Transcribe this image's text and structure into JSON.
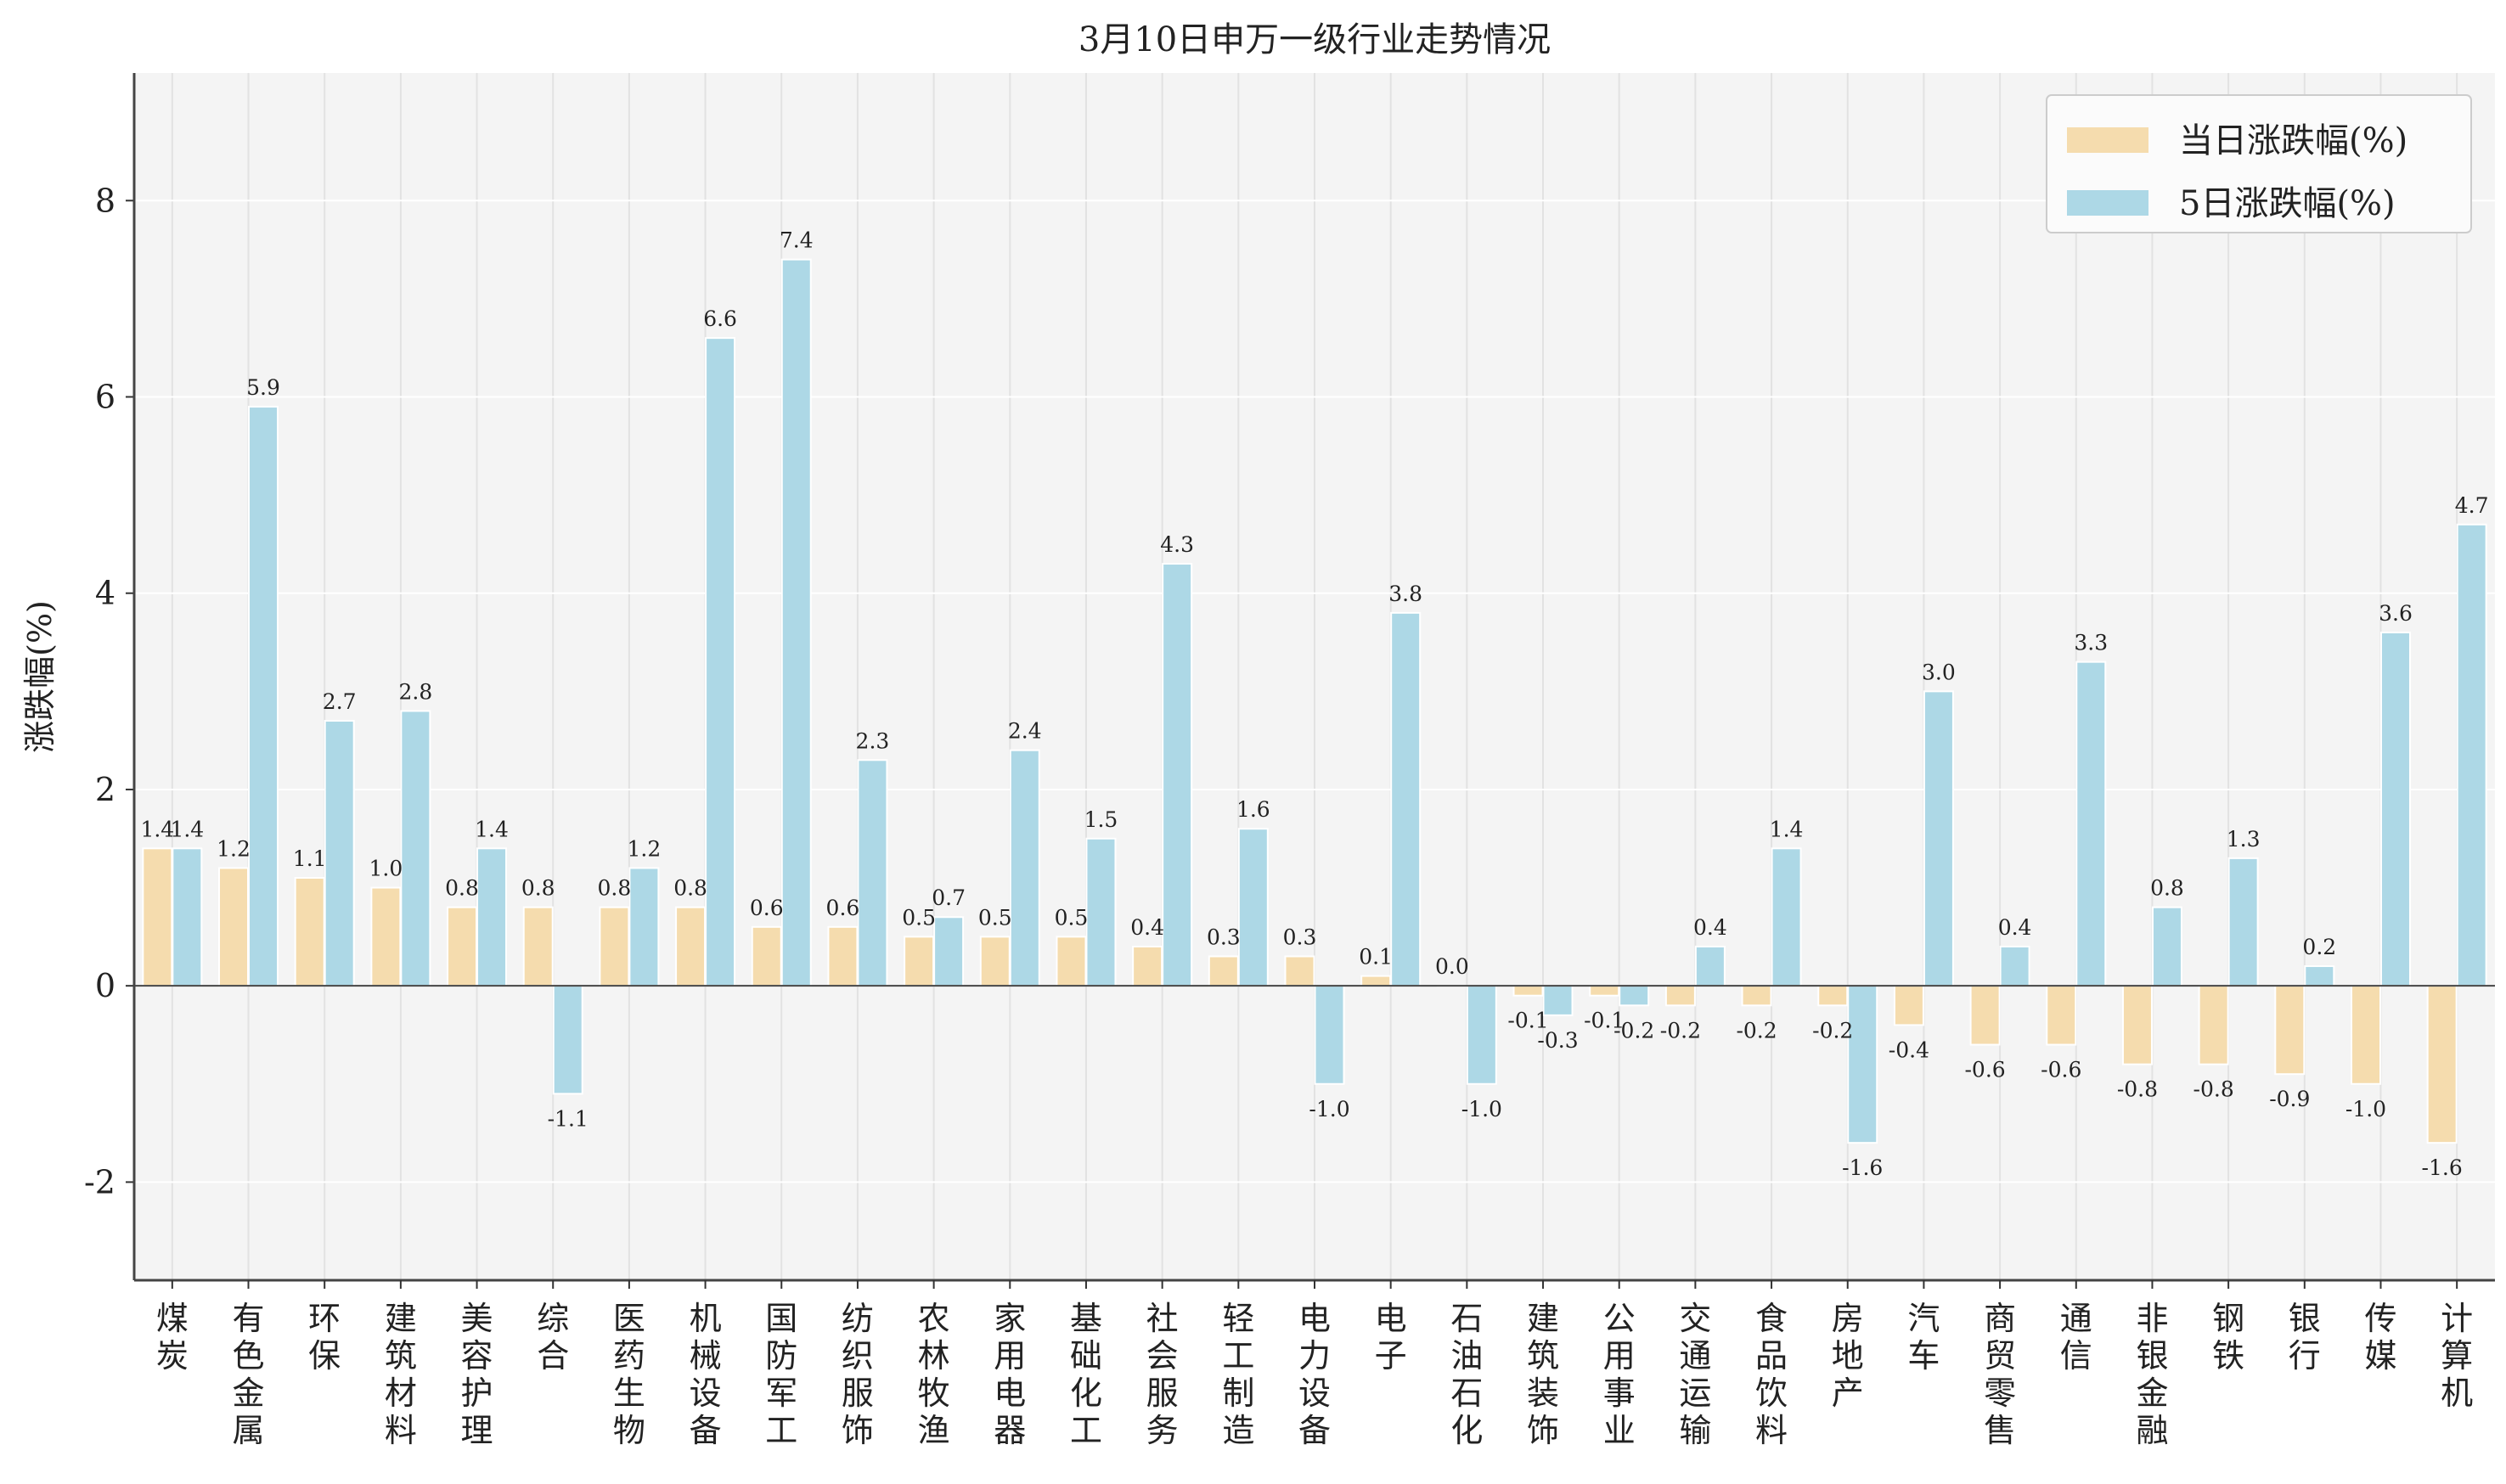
{
  "chart_data": {
    "type": "bar",
    "title": "3月10日申万一级行业走势情况",
    "xlabel": "",
    "ylabel": "涨跌幅(%)",
    "ylim": [
      -3,
      9.3
    ],
    "yticks": [
      -2,
      0,
      2,
      4,
      6,
      8
    ],
    "grid": true,
    "legend_position": "top-right",
    "categories": [
      "煤炭",
      "有色金属",
      "环保",
      "建筑材料",
      "美容护理",
      "综合",
      "医药生物",
      "机械设备",
      "国防军工",
      "纺织服饰",
      "农林牧渔",
      "家用电器",
      "基础化工",
      "社会服务",
      "轻工制造",
      "电力设备",
      "电子",
      "石油石化",
      "建筑装饰",
      "公用事业",
      "交通运输",
      "食品饮料",
      "房地产",
      "汽车",
      "商贸零售",
      "通信",
      "非银金融",
      "钢铁",
      "银行",
      "传媒",
      "计算机"
    ],
    "series": [
      {
        "name": "当日涨跌幅(%)",
        "color": "#f5dcae",
        "values": [
          1.4,
          1.2,
          1.1,
          1.0,
          0.8,
          0.8,
          0.8,
          0.8,
          0.6,
          0.6,
          0.5,
          0.5,
          0.5,
          0.4,
          0.3,
          0.3,
          0.1,
          0.0,
          -0.1,
          -0.1,
          -0.2,
          -0.2,
          -0.2,
          -0.4,
          -0.6,
          -0.6,
          -0.8,
          -0.8,
          -0.9,
          -1.0,
          -1.6
        ]
      },
      {
        "name": "5日涨跌幅(%)",
        "color": "#add8e6",
        "values": [
          1.4,
          5.9,
          2.7,
          2.8,
          1.4,
          -1.1,
          1.2,
          6.6,
          7.4,
          2.3,
          0.7,
          2.4,
          1.5,
          4.3,
          1.6,
          -1.0,
          3.8,
          -1.0,
          -0.3,
          -0.2,
          0.4,
          1.4,
          -1.6,
          3.0,
          0.4,
          3.3,
          0.8,
          1.3,
          0.2,
          3.6,
          4.7
        ]
      }
    ]
  }
}
